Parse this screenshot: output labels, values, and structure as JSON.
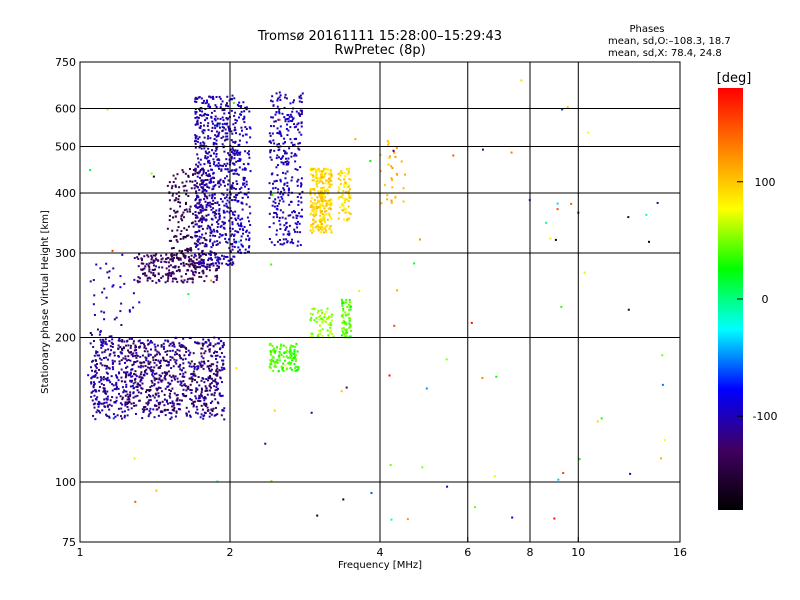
{
  "chart_data": {
    "type": "scatter",
    "title": "Tromsø 20161111 15:28:00–15:29:43",
    "subtitle": "RwPretec (8p)",
    "xlabel": "Frequency [MHz]",
    "ylabel": "Stationary phase Virtual Height [km]",
    "x_scale": "log",
    "y_scale": "log",
    "xlim": [
      1,
      16
    ],
    "ylim": [
      75,
      750
    ],
    "x_ticks": [
      1,
      2,
      4,
      6,
      8,
      10,
      16
    ],
    "y_ticks": [
      75,
      100,
      200,
      300,
      400,
      500,
      600,
      750
    ],
    "x_gridlines": [
      2,
      4,
      6,
      8,
      10
    ],
    "y_gridlines": [
      100,
      200,
      300,
      400,
      500,
      600
    ],
    "grid": true,
    "stats_title": "Phases",
    "stats_line1": "mean, sd,O:–108.3, 18.7",
    "stats_line2": "mean, sd,X:  78.4, 24.8",
    "colorbar": {
      "label": "[deg]",
      "range": [
        -180,
        180
      ],
      "ticks": [
        100,
        0,
        -100
      ],
      "colors": [
        "#000000",
        "#400060",
        "#0000ff",
        "#00ffff",
        "#00ff00",
        "#ffff00",
        "#ff8000",
        "#ff0000"
      ]
    },
    "series": [
      {
        "clusters": [
          {
            "f": [
              1.05,
              1.95
            ],
            "h": [
              135,
              200
            ],
            "phase": -110,
            "n": 700
          },
          {
            "f": [
              1.2,
              1.9
            ],
            "h": [
              140,
              195
            ],
            "phase": -135,
            "n": 250
          },
          {
            "f": [
              1.05,
              1.3
            ],
            "h": [
              140,
              300
            ],
            "phase": -105,
            "n": 80
          },
          {
            "f": [
              1.3,
              1.9
            ],
            "h": [
              260,
              300
            ],
            "phase": -130,
            "n": 220
          },
          {
            "f": [
              1.5,
              1.8
            ],
            "h": [
              280,
              450
            ],
            "phase": -140,
            "n": 200
          },
          {
            "f": [
              1.7,
              2.05
            ],
            "h": [
              280,
              640
            ],
            "phase": -105,
            "n": 650
          },
          {
            "f": [
              2.05,
              2.2
            ],
            "h": [
              300,
              620
            ],
            "phase": -100,
            "n": 160
          },
          {
            "f": [
              2.4,
              2.8
            ],
            "h": [
              310,
              650
            ],
            "phase": -100,
            "n": 300
          },
          {
            "f": [
              2.4,
              2.75
            ],
            "h": [
              170,
              195
            ],
            "phase": 40,
            "n": 120
          },
          {
            "f": [
              2.9,
              3.2
            ],
            "h": [
              330,
              450
            ],
            "phase": 95,
            "n": 280
          },
          {
            "f": [
              3.3,
              3.5
            ],
            "h": [
              350,
              450
            ],
            "phase": 90,
            "n": 80
          },
          {
            "f": [
              2.9,
              3.25
            ],
            "h": [
              200,
              230
            ],
            "phase": 55,
            "n": 60
          },
          {
            "f": [
              3.35,
              3.5
            ],
            "h": [
              200,
              240
            ],
            "phase": 40,
            "n": 70
          },
          {
            "f": [
              4.0,
              4.5
            ],
            "h": [
              380,
              520
            ],
            "phase": 110,
            "n": 30
          },
          {
            "f": [
              1.0,
              15.0
            ],
            "h": [
              80,
              700
            ],
            "phase": 0,
            "n": 90
          }
        ]
      }
    ]
  }
}
